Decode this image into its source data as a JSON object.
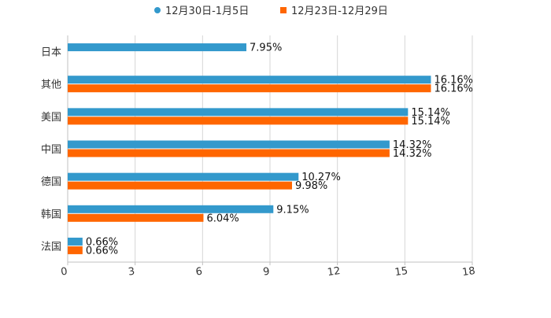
{
  "chart_data": {
    "type": "bar",
    "orientation": "horizontal",
    "title": "",
    "xlabel": "",
    "ylabel": "",
    "xlim": [
      0,
      18
    ],
    "xticks": [
      0,
      3,
      6,
      9,
      12,
      15,
      18
    ],
    "categories": [
      "日本",
      "其他",
      "美国",
      "中国",
      "德国",
      "韩国",
      "法国"
    ],
    "series": [
      {
        "name": "12月30日-1月5日",
        "color": "#3399cc",
        "values": [
          7.95,
          16.16,
          15.14,
          14.32,
          10.27,
          9.15,
          0.66
        ],
        "labels": [
          "7.95%",
          "16.16%",
          "15.14%",
          "14.32%",
          "10.27%",
          "9.15%",
          "0.66%"
        ]
      },
      {
        "name": "12月23日-12月29日",
        "color": "#ff6600",
        "values": [
          null,
          16.16,
          15.14,
          14.32,
          9.98,
          6.04,
          0.66
        ],
        "labels": [
          null,
          "16.16%",
          "15.14%",
          "14.32%",
          "9.98%",
          "6.04%",
          "0.66%"
        ]
      }
    ],
    "grid": "vertical",
    "legend": "top-center"
  }
}
